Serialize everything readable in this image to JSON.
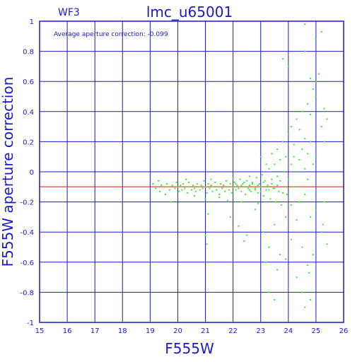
{
  "chart_data": {
    "type": "scatter",
    "chip": "WF3",
    "title": "lmc_u65001",
    "annotation": "Average aperture correction: -0.099",
    "xlabel": "F555W",
    "ylabel": "F555W aperture correction",
    "xlim": [
      15,
      26
    ],
    "ylim": [
      -1,
      1
    ],
    "x_ticks": [
      "15",
      "16",
      "17",
      "18",
      "19",
      "20",
      "21",
      "22",
      "23",
      "24",
      "25",
      "26"
    ],
    "y_ticks": [
      "1",
      "0.8",
      "0.6",
      "0.4",
      "0.2",
      "0",
      "-0.2",
      "-0.4",
      "-0.6",
      "-0.8",
      "-1"
    ],
    "grid": true,
    "reference_line": -0.099,
    "colors": {
      "axes": "#1a1acc",
      "points": "#33ee33",
      "reference_line": "#cc2200"
    },
    "points": [
      [
        19.1,
        -0.08
      ],
      [
        19.2,
        -0.11
      ],
      [
        19.3,
        -0.06
      ],
      [
        19.35,
        -0.13
      ],
      [
        19.4,
        -0.09
      ],
      [
        19.5,
        -0.1
      ],
      [
        19.55,
        -0.15
      ],
      [
        19.6,
        -0.08
      ],
      [
        19.7,
        -0.12
      ],
      [
        19.75,
        -0.2
      ],
      [
        19.8,
        -0.09
      ],
      [
        19.9,
        -0.11
      ],
      [
        19.95,
        -0.07
      ],
      [
        20.0,
        -0.1
      ],
      [
        20.05,
        -0.13
      ],
      [
        20.1,
        -0.09
      ],
      [
        20.15,
        -0.12
      ],
      [
        20.2,
        -0.08
      ],
      [
        20.25,
        -0.11
      ],
      [
        20.3,
        -0.1
      ],
      [
        20.35,
        -0.14
      ],
      [
        20.4,
        -0.07
      ],
      [
        20.45,
        -0.1
      ],
      [
        20.5,
        -0.12
      ],
      [
        20.55,
        -0.09
      ],
      [
        20.6,
        -0.11
      ],
      [
        20.65,
        -0.13
      ],
      [
        20.7,
        -0.08
      ],
      [
        20.75,
        -0.1
      ],
      [
        20.8,
        -0.12
      ],
      [
        20.85,
        -0.09
      ],
      [
        20.9,
        -0.11
      ],
      [
        20.95,
        -0.06
      ],
      [
        21.0,
        -0.1
      ],
      [
        21.05,
        -0.14
      ],
      [
        21.1,
        -0.08
      ],
      [
        21.15,
        -0.11
      ],
      [
        21.2,
        -0.09
      ],
      [
        21.25,
        -0.13
      ],
      [
        21.3,
        -0.1
      ],
      [
        21.35,
        -0.07
      ],
      [
        21.4,
        -0.12
      ],
      [
        21.45,
        -0.1
      ],
      [
        21.5,
        -0.15
      ],
      [
        21.55,
        -0.08
      ],
      [
        21.6,
        -0.11
      ],
      [
        21.65,
        -0.09
      ],
      [
        21.7,
        -0.13
      ],
      [
        21.75,
        -0.06
      ],
      [
        21.8,
        -0.1
      ],
      [
        21.85,
        -0.12
      ],
      [
        21.9,
        -0.08
      ],
      [
        21.95,
        -0.14
      ],
      [
        22.0,
        -0.1
      ],
      [
        22.05,
        -0.07
      ],
      [
        22.1,
        -0.12
      ],
      [
        22.15,
        -0.09
      ],
      [
        22.2,
        -0.11
      ],
      [
        22.25,
        -0.05
      ],
      [
        22.3,
        -0.13
      ],
      [
        22.35,
        -0.08
      ],
      [
        22.4,
        -0.1
      ],
      [
        22.45,
        -0.15
      ],
      [
        22.5,
        -0.06
      ],
      [
        22.55,
        -0.11
      ],
      [
        22.6,
        -0.09
      ],
      [
        22.65,
        -0.13
      ],
      [
        22.7,
        -0.07
      ],
      [
        22.75,
        -0.1
      ],
      [
        22.8,
        -0.12
      ],
      [
        22.85,
        -0.04
      ],
      [
        22.9,
        -0.14
      ],
      [
        22.95,
        -0.08
      ],
      [
        23.0,
        -0.1
      ],
      [
        23.05,
        -0.02
      ],
      [
        23.1,
        -0.16
      ],
      [
        23.15,
        -0.06
      ],
      [
        23.2,
        -0.12
      ],
      [
        23.25,
        -0.09
      ],
      [
        23.3,
        0.02
      ],
      [
        23.35,
        -0.18
      ],
      [
        23.4,
        -0.05
      ],
      [
        23.45,
        -0.11
      ],
      [
        23.5,
        0.05
      ],
      [
        23.55,
        -0.2
      ],
      [
        23.6,
        -0.03
      ],
      [
        23.65,
        -0.13
      ],
      [
        23.7,
        0.08
      ],
      [
        23.75,
        -0.22
      ],
      [
        23.8,
        0.0
      ],
      [
        20.3,
        -0.05
      ],
      [
        20.6,
        -0.16
      ],
      [
        21.0,
        -0.18
      ],
      [
        21.2,
        -0.05
      ],
      [
        21.5,
        -0.17
      ],
      [
        21.8,
        -0.19
      ],
      [
        22.0,
        -0.04
      ],
      [
        22.3,
        -0.2
      ],
      [
        22.6,
        -0.03
      ],
      [
        22.9,
        -0.21
      ],
      [
        21.1,
        -0.28
      ],
      [
        21.9,
        -0.3
      ],
      [
        22.2,
        -0.36
      ],
      [
        22.5,
        -0.42
      ],
      [
        22.8,
        -0.25
      ],
      [
        23.1,
        -0.4
      ],
      [
        23.3,
        -0.5
      ],
      [
        23.5,
        -0.35
      ],
      [
        23.7,
        -0.55
      ],
      [
        23.9,
        -0.3
      ],
      [
        21.0,
        -0.42
      ],
      [
        21.05,
        -0.48
      ],
      [
        22.4,
        -0.46
      ],
      [
        23.2,
        -0.6
      ],
      [
        23.6,
        -0.65
      ],
      [
        23.9,
        -0.58
      ],
      [
        24.1,
        -0.45
      ],
      [
        24.3,
        -0.7
      ],
      [
        24.5,
        -0.5
      ],
      [
        24.7,
        -0.62
      ],
      [
        23.0,
        0.1
      ],
      [
        23.2,
        0.05
      ],
      [
        23.4,
        0.12
      ],
      [
        23.6,
        0.15
      ],
      [
        23.8,
        0.2
      ],
      [
        23.9,
        0.1
      ],
      [
        24.0,
        0.25
      ],
      [
        24.1,
        0.3
      ],
      [
        24.2,
        0.18
      ],
      [
        24.3,
        0.35
      ],
      [
        24.4,
        0.28
      ],
      [
        24.5,
        0.4
      ],
      [
        24.6,
        0.22
      ],
      [
        24.7,
        0.45
      ],
      [
        24.8,
        0.38
      ],
      [
        24.9,
        0.55
      ],
      [
        25.0,
        0.5
      ],
      [
        25.1,
        0.65
      ],
      [
        25.2,
        0.3
      ],
      [
        25.3,
        0.42
      ],
      [
        23.8,
        0.75
      ],
      [
        24.0,
        0.7
      ],
      [
        24.6,
        0.8
      ],
      [
        24.8,
        0.62
      ],
      [
        25.0,
        0.88
      ],
      [
        25.2,
        0.93
      ],
      [
        24.6,
        0.98
      ],
      [
        25.0,
        0.6
      ],
      [
        25.3,
        0.2
      ],
      [
        25.4,
        0.35
      ],
      [
        24.2,
        -0.1
      ],
      [
        24.4,
        -0.2
      ],
      [
        24.6,
        -0.15
      ],
      [
        24.8,
        -0.3
      ],
      [
        25.0,
        -0.25
      ],
      [
        25.2,
        -0.4
      ],
      [
        25.4,
        -0.48
      ],
      [
        24.9,
        -0.55
      ],
      [
        25.3,
        -0.2
      ],
      [
        24.7,
        -0.05
      ],
      [
        24.5,
        -0.8
      ],
      [
        24.8,
        -0.85
      ],
      [
        24.6,
        -0.9
      ],
      [
        24.75,
        -0.67
      ],
      [
        23.3,
        -0.8
      ],
      [
        23.5,
        -0.85
      ],
      [
        25.25,
        -0.35
      ],
      [
        24.3,
        -0.32
      ],
      [
        24.1,
        -0.22
      ],
      [
        23.95,
        -0.15
      ],
      [
        22.1,
        -0.08
      ],
      [
        22.2,
        -0.11
      ],
      [
        22.3,
        -0.09
      ],
      [
        22.4,
        -0.07
      ],
      [
        22.5,
        -0.1
      ],
      [
        22.6,
        -0.12
      ],
      [
        22.7,
        -0.08
      ],
      [
        22.8,
        -0.11
      ],
      [
        22.9,
        -0.09
      ],
      [
        23.0,
        -0.13
      ],
      [
        23.1,
        -0.07
      ],
      [
        23.2,
        -0.1
      ],
      [
        23.3,
        -0.12
      ],
      [
        23.4,
        -0.08
      ],
      [
        23.5,
        -0.11
      ],
      [
        23.6,
        -0.09
      ],
      [
        23.7,
        -0.06
      ],
      [
        23.8,
        -0.14
      ],
      [
        23.9,
        -0.1
      ],
      [
        24.0,
        -0.05
      ],
      [
        24.1,
        0.05
      ],
      [
        24.2,
        0.1
      ],
      [
        24.3,
        0.0
      ],
      [
        24.4,
        0.08
      ],
      [
        24.5,
        0.15
      ],
      [
        24.6,
        0.02
      ],
      [
        24.7,
        0.12
      ],
      [
        24.8,
        0.2
      ],
      [
        24.9,
        0.05
      ],
      [
        25.0,
        0.1
      ]
    ]
  }
}
